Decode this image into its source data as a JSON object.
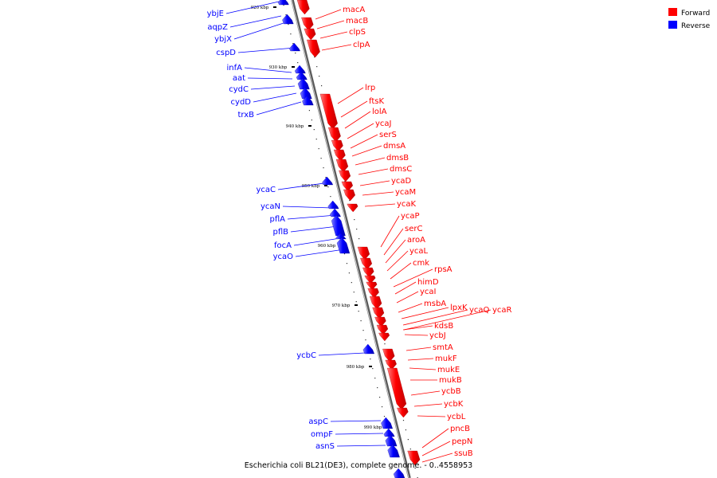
{
  "caption": "Escherichia coli BL21(DE3), complete genome. - 0..4558953",
  "legend": [
    {
      "label": "Forward",
      "color": "#ff0000"
    },
    {
      "label": "Reverse",
      "color": "#0000ff"
    }
  ],
  "colors": {
    "forward": "#ff0000",
    "reverse": "#0000ff",
    "backbone": "#888888"
  },
  "ticks": [
    "920 kbp",
    "930 kbp",
    "940 kbp",
    "950 kbp",
    "960 kbp",
    "970 kbp",
    "980 kbp",
    "990 kbp"
  ],
  "reverse_genes": [
    "ybjE",
    "aqpZ",
    "ybjX",
    "cspD",
    "infA",
    "aat",
    "cydC",
    "cydD",
    "trxB",
    "ycaC",
    "ycaN",
    "pflA",
    "pflB",
    "focA",
    "ycaO",
    "ycbC",
    "aspC",
    "ompF",
    "asnS"
  ],
  "forward_genes": [
    "macA",
    "macB",
    "clpS",
    "clpA",
    "lrp",
    "ftsK",
    "lolA",
    "ycaJ",
    "serS",
    "dmsA",
    "dmsB",
    "dmsC",
    "ycaD",
    "ycaM",
    "ycaK",
    "ycaP",
    "serC",
    "aroA",
    "ycaL",
    "cmk",
    "rpsA",
    "himD",
    "ycaI",
    "msbA",
    "lpxK",
    "ycaQ",
    "ycaR",
    "kdsB",
    "ycbJ",
    "smtA",
    "mukF",
    "mukE",
    "mukB",
    "ycbB",
    "ycbK",
    "ycbL",
    "pncB",
    "pepN",
    "ssuB"
  ]
}
